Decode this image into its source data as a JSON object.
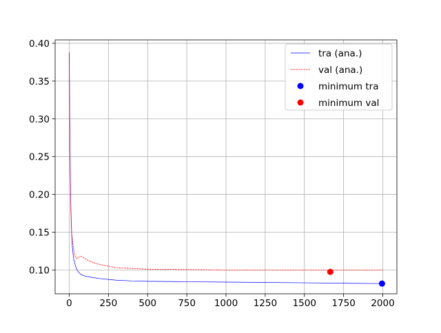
{
  "chart_data": {
    "type": "line",
    "title": "",
    "xlabel": "",
    "ylabel": "",
    "xlim": [
      -90,
      2090
    ],
    "ylim": [
      0.0685,
      0.4045
    ],
    "xticks": [
      0,
      250,
      500,
      750,
      1000,
      1250,
      1500,
      1750,
      2000
    ],
    "xtick_labels": [
      "0",
      "250",
      "500",
      "750",
      "1000",
      "1250",
      "1500",
      "1750",
      "2000"
    ],
    "yticks": [
      0.1,
      0.15,
      0.2,
      0.25,
      0.3,
      0.35,
      0.4
    ],
    "ytick_labels": [
      "0.10",
      "0.15",
      "0.20",
      "0.25",
      "0.30",
      "0.35",
      "0.40"
    ],
    "grid": true,
    "legend_position": "top-right",
    "series": [
      {
        "name": "tra (ana.)",
        "style": "solid",
        "color": "#0000ff",
        "x": [
          0,
          3,
          6,
          10,
          15,
          20,
          25,
          30,
          40,
          50,
          60,
          75,
          100,
          150,
          200,
          250,
          300,
          400,
          500,
          750,
          1000,
          1250,
          1500,
          1750,
          2000
        ],
        "y": [
          0.388,
          0.31,
          0.24,
          0.185,
          0.15,
          0.13,
          0.12,
          0.113,
          0.105,
          0.1,
          0.097,
          0.094,
          0.092,
          0.09,
          0.0885,
          0.0875,
          0.0865,
          0.0855,
          0.085,
          0.0845,
          0.084,
          0.0835,
          0.083,
          0.0825,
          0.082
        ]
      },
      {
        "name": "val (ana.)",
        "style": "dashed",
        "color": "#ff0000",
        "x": [
          0,
          3,
          6,
          10,
          15,
          20,
          25,
          30,
          35,
          40,
          50,
          60,
          80,
          100,
          125,
          150,
          200,
          250,
          300,
          400,
          500,
          750,
          1000,
          1250,
          1500,
          1750,
          2000
        ],
        "y": [
          0.388,
          0.3,
          0.23,
          0.18,
          0.15,
          0.14,
          0.132,
          0.125,
          0.12,
          0.117,
          0.115,
          0.117,
          0.118,
          0.115,
          0.112,
          0.11,
          0.107,
          0.105,
          0.103,
          0.102,
          0.101,
          0.1005,
          0.1,
          0.1,
          0.1,
          0.1,
          0.1
        ]
      },
      {
        "name": "minimum tra",
        "type": "point",
        "color": "#0000ff",
        "x": [
          1995
        ],
        "y": [
          0.082
        ]
      },
      {
        "name": "minimum val",
        "type": "point",
        "color": "#ff0000",
        "x": [
          1665
        ],
        "y": [
          0.0975
        ]
      }
    ]
  }
}
